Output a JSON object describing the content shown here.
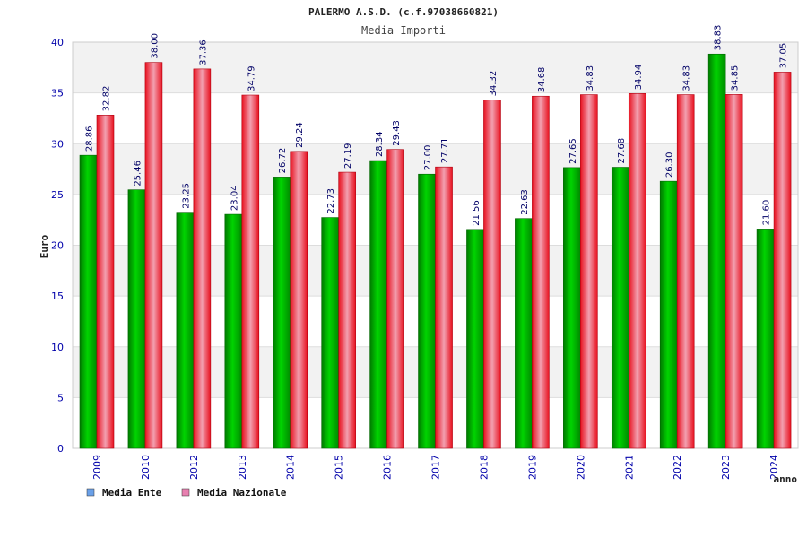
{
  "chart_data": {
    "type": "bar",
    "title": "PALERMO A.S.D. (c.f.97038660821)",
    "subtitle": "Media Importi",
    "xlabel": "anno",
    "ylabel": "Euro",
    "ylim": [
      0,
      40
    ],
    "yticks": [
      0,
      5,
      10,
      15,
      20,
      25,
      30,
      35,
      40
    ],
    "grid": "horizontal-bands",
    "legend_position": "bottom-left",
    "categories": [
      "2009",
      "2010",
      "2012",
      "2013",
      "2014",
      "2015",
      "2016",
      "2017",
      "2018",
      "2019",
      "2020",
      "2021",
      "2022",
      "2023",
      "2024"
    ],
    "series": [
      {
        "name": "Media Ente",
        "legend_color": "#6aa0e8",
        "bar_color": "#00b000",
        "values": [
          28.86,
          25.46,
          23.25,
          23.04,
          26.72,
          22.73,
          28.34,
          27.0,
          21.56,
          22.63,
          27.65,
          27.68,
          26.3,
          38.83,
          21.6
        ],
        "labels": [
          "28.86",
          "25.46",
          "23.25",
          "23.04",
          "26.72",
          "22.73",
          "28.34",
          "27.00",
          "21.56",
          "22.63",
          "27.65",
          "27.68",
          "26.30",
          "38.83",
          "21.60"
        ]
      },
      {
        "name": "Media Nazionale",
        "legend_color": "#e880b0",
        "bar_color": "#ee1a2a",
        "values": [
          32.82,
          38.0,
          37.36,
          34.79,
          29.24,
          27.19,
          29.43,
          27.71,
          34.32,
          34.68,
          34.83,
          34.94,
          34.83,
          34.85,
          37.05
        ],
        "labels": [
          "32.82",
          "38.00",
          "37.36",
          "34.79",
          "29.24",
          "27.19",
          "29.43",
          "27.71",
          "34.32",
          "34.68",
          "34.83",
          "34.94",
          "34.83",
          "34.85",
          "37.05"
        ]
      }
    ]
  }
}
